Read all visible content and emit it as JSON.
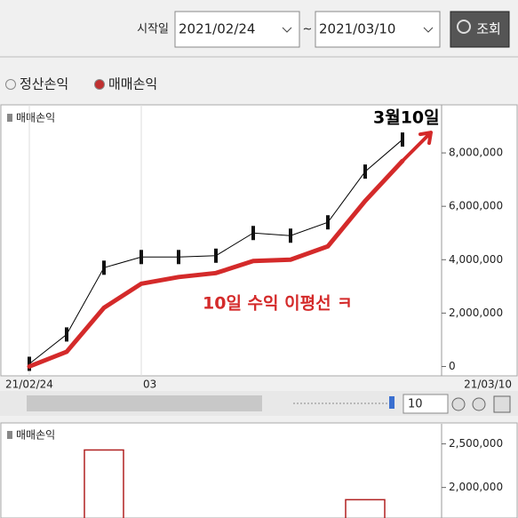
{
  "toolbar": {
    "start_label": "시작일",
    "start_date": "2021/02/24",
    "separator": "~",
    "end_date": "2021/03/10",
    "search_button": "조회"
  },
  "radio": [
    {
      "label": "정산손익",
      "selected": false
    },
    {
      "label": "매매손익",
      "selected": true
    }
  ],
  "scroll": {
    "zoom_value": "10"
  },
  "chart_data": [
    {
      "type": "line",
      "title": "매매손익",
      "categories": [
        "21/02/24",
        null,
        null,
        "03",
        null,
        null,
        null,
        null,
        null,
        null,
        null
      ],
      "x_end_label": "21/03/10",
      "series": [
        {
          "color": "#000000",
          "values": [
            100000,
            1200000,
            3700000,
            4100000,
            4100000,
            4150000,
            5000000,
            4900000,
            5400000,
            7300000,
            8500000
          ]
        },
        {
          "color": "#d42a2a",
          "values": [
            0,
            550000,
            2200000,
            3100000,
            3350000,
            3500000,
            3950000,
            4000000,
            4500000,
            6200000,
            7700000
          ]
        }
      ],
      "ylim": [
        -350000,
        9800000
      ],
      "yticks": [
        {
          "value": 0,
          "label": "0"
        },
        {
          "value": 2000000,
          "label": "2,000,000"
        },
        {
          "value": 4000000,
          "label": "4,000,000"
        },
        {
          "value": 6000000,
          "label": "6,000,000"
        },
        {
          "value": 8000000,
          "label": "8,000,000"
        }
      ],
      "annotations": [
        "3월10일",
        "10일 수익 이평선 ㅋ"
      ]
    },
    {
      "type": "bar",
      "title": "매매손익",
      "color": "#b02020",
      "values": [
        null,
        null,
        2430000,
        null,
        null,
        null,
        null,
        null,
        null,
        1860000,
        null
      ],
      "ylim": [
        1650000,
        2730000
      ],
      "yticks": [
        {
          "value": 2000000,
          "label": "2,000,000"
        },
        {
          "value": 2500000,
          "label": "2,500,000"
        }
      ]
    }
  ]
}
